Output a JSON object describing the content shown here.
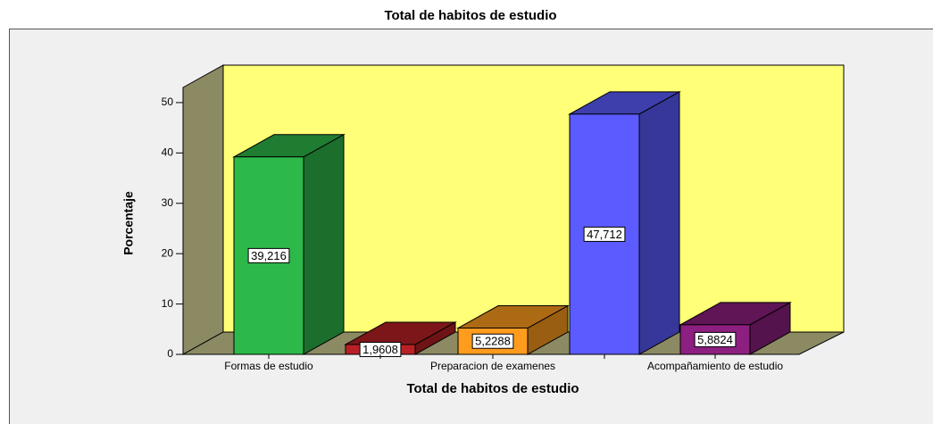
{
  "chart_data": {
    "type": "bar3d",
    "title": "Total de habitos de estudio",
    "categories": [
      "Formas de estudio",
      null,
      "Preparacion de examenes",
      null,
      "Acompañamiento de estudio"
    ],
    "values": [
      39.216,
      1.9608,
      5.2288,
      47.712,
      5.8824
    ],
    "value_labels": [
      "39,216",
      "1,9608",
      "5,2288",
      "47,712",
      "5,8824"
    ],
    "colors": [
      "#2db84a",
      "#b82025",
      "#ff9c1e",
      "#5b5bff",
      "#8c1f7f"
    ],
    "xlabel": "Total de habitos de estudio",
    "ylabel": "Porcentaje",
    "ylim": [
      0,
      53
    ],
    "yticks": [
      0,
      10,
      20,
      30,
      40,
      50
    ]
  }
}
